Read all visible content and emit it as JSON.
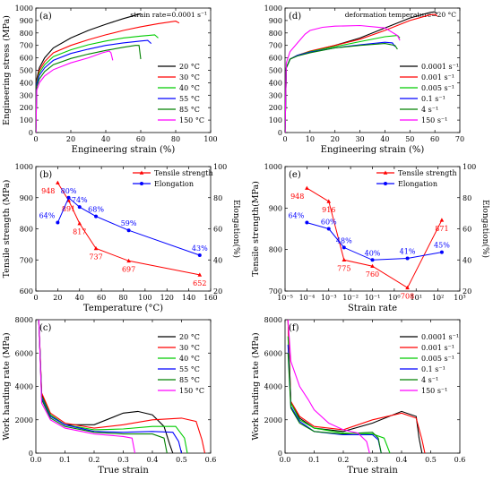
{
  "chart_data": [
    {
      "panel": "(a)",
      "type": "line",
      "annotation": "strain rate=0.0001 s⁻¹",
      "xlabel": "Engineering strain (%)",
      "ylabel": "Engineering stress (MPa)",
      "xlim": [
        0,
        100
      ],
      "ylim": [
        0,
        1000
      ],
      "xticks": [
        "0",
        "20",
        "40",
        "60",
        "80",
        "100"
      ],
      "yticks": [
        "0",
        "100",
        "200",
        "300",
        "400",
        "500",
        "600",
        "700",
        "800",
        "900",
        "1000"
      ],
      "legend_position": "lower-right",
      "series": [
        {
          "name": "20 °C",
          "color": "#000000",
          "x": [
            0,
            0.5,
            2,
            5,
            10,
            20,
            30,
            40,
            50,
            60
          ],
          "y": [
            0,
            430,
            520,
            600,
            680,
            760,
            820,
            870,
            915,
            955
          ]
        },
        {
          "name": "30 °C",
          "color": "#ff0000",
          "x": [
            0,
            0.5,
            2,
            5,
            10,
            20,
            30,
            40,
            50,
            60,
            70,
            80,
            82
          ],
          "y": [
            0,
            410,
            500,
            570,
            640,
            700,
            745,
            785,
            820,
            850,
            875,
            895,
            880
          ]
        },
        {
          "name": "40 °C",
          "color": "#00cc00",
          "x": [
            0,
            0.5,
            2,
            5,
            10,
            20,
            30,
            40,
            50,
            60,
            68,
            70
          ],
          "y": [
            0,
            400,
            480,
            545,
            610,
            665,
            705,
            735,
            760,
            775,
            785,
            760
          ]
        },
        {
          "name": "55 °C",
          "color": "#0000ff",
          "x": [
            0,
            0.5,
            2,
            5,
            10,
            20,
            30,
            40,
            50,
            60,
            64,
            66
          ],
          "y": [
            0,
            390,
            460,
            520,
            580,
            635,
            670,
            700,
            720,
            735,
            740,
            715
          ]
        },
        {
          "name": "85 °C",
          "color": "#008000",
          "x": [
            0,
            0.5,
            2,
            5,
            10,
            20,
            30,
            40,
            50,
            57,
            59,
            60
          ],
          "y": [
            0,
            370,
            430,
            490,
            545,
            595,
            630,
            660,
            685,
            700,
            700,
            590
          ]
        },
        {
          "name": "150 °C",
          "color": "#ff00ff",
          "x": [
            0,
            0.5,
            2,
            5,
            10,
            20,
            30,
            38,
            42,
            43,
            44
          ],
          "y": [
            0,
            340,
            400,
            455,
            505,
            560,
            600,
            640,
            655,
            640,
            580
          ]
        }
      ]
    },
    {
      "panel": "(d)",
      "type": "line",
      "annotation": "deformation temperature=20 °C",
      "xlabel": "Engineering strain (%)",
      "ylabel": "",
      "xlim": [
        0,
        70
      ],
      "ylim": [
        0,
        1000
      ],
      "xticks": [
        "0",
        "10",
        "20",
        "30",
        "40",
        "50",
        "60",
        "70"
      ],
      "yticks": [
        "0",
        "100",
        "200",
        "300",
        "400",
        "500",
        "600",
        "700",
        "800",
        "900",
        "1000"
      ],
      "legend_position": "lower-right",
      "series": [
        {
          "name": "0.0001 s⁻¹",
          "color": "#000000",
          "x": [
            0,
            0.5,
            2,
            5,
            10,
            20,
            30,
            40,
            50,
            58,
            60,
            61
          ],
          "y": [
            0,
            520,
            590,
            620,
            650,
            700,
            760,
            840,
            920,
            965,
            970,
            955
          ]
        },
        {
          "name": "0.001 s⁻¹",
          "color": "#ff0000",
          "x": [
            0,
            0.5,
            2,
            5,
            10,
            20,
            30,
            40,
            50,
            58,
            60,
            61
          ],
          "y": [
            0,
            520,
            590,
            620,
            655,
            700,
            750,
            820,
            900,
            945,
            950,
            935
          ]
        },
        {
          "name": "0.005 s⁻¹",
          "color": "#00cc00",
          "x": [
            0,
            0.5,
            2,
            5,
            10,
            20,
            30,
            40,
            45,
            46
          ],
          "y": [
            0,
            520,
            590,
            620,
            650,
            690,
            730,
            770,
            780,
            760
          ]
        },
        {
          "name": "0.1 s⁻¹",
          "color": "#0000ff",
          "x": [
            0,
            0.5,
            2,
            5,
            10,
            20,
            30,
            40,
            43,
            44
          ],
          "y": [
            0,
            520,
            590,
            620,
            645,
            680,
            705,
            725,
            720,
            690
          ]
        },
        {
          "name": "4 s⁻¹",
          "color": "#008000",
          "x": [
            0,
            0.5,
            2,
            5,
            10,
            20,
            30,
            40,
            44,
            45
          ],
          "y": [
            0,
            520,
            590,
            615,
            640,
            680,
            700,
            715,
            700,
            670
          ]
        },
        {
          "name": "150 s⁻¹",
          "color": "#ff00ff",
          "x": [
            0,
            0.5,
            2,
            5,
            8,
            10,
            15,
            20,
            30,
            40,
            45,
            46
          ],
          "y": [
            0,
            560,
            650,
            720,
            790,
            820,
            845,
            855,
            860,
            840,
            780,
            740
          ]
        }
      ]
    },
    {
      "panel": "(b)",
      "type": "line",
      "xlabel": "Temperature (°C)",
      "ylabel": "Tensile strength (MPa)",
      "y2label": "Elongation(%)",
      "xlim": [
        0,
        160
      ],
      "ylim": [
        600,
        1000
      ],
      "y2lim": [
        20,
        100
      ],
      "xticks": [
        "0",
        "20",
        "40",
        "60",
        "80",
        "100",
        "120",
        "140",
        "160"
      ],
      "yticks": [
        "600",
        "700",
        "800",
        "900",
        "1000"
      ],
      "y2ticks": [
        "20",
        "40",
        "60",
        "80",
        "100"
      ],
      "legend_position": "top-right",
      "series": [
        {
          "name": "Tensile strength",
          "color": "#ff0000",
          "axis": "left",
          "x": [
            20,
            30,
            40,
            55,
            85,
            150
          ],
          "y": [
            948,
            891,
            817,
            737,
            697,
            652
          ],
          "labels": [
            "948",
            "891",
            "817",
            "737",
            "697",
            "652"
          ]
        },
        {
          "name": "Elongation",
          "color": "#0000ff",
          "axis": "right",
          "x": [
            20,
            30,
            40,
            55,
            85,
            150
          ],
          "y": [
            64,
            80,
            74,
            68,
            59,
            43
          ],
          "labels": [
            "64%",
            "80%",
            "74%",
            "68%",
            "59%",
            "43%"
          ]
        }
      ]
    },
    {
      "panel": "(e)",
      "type": "line",
      "xlabel": "Strain rate",
      "ylabel": "Tensile strength(MPa)",
      "y2label": "Elongation(%)",
      "xscale": "log",
      "xlim": [
        1e-05,
        1000
      ],
      "ylim": [
        700,
        1000
      ],
      "y2lim": [
        20,
        100
      ],
      "xticks": [
        "10⁻⁵",
        "10⁻⁴",
        "10⁻³",
        "10⁻²",
        "10⁻¹",
        "10⁰",
        "10¹",
        "10²",
        "10³"
      ],
      "yticks": [
        "700",
        "800",
        "900",
        "1000"
      ],
      "y2ticks": [
        "20",
        "40",
        "60",
        "80",
        "100"
      ],
      "legend_position": "top-right",
      "series": [
        {
          "name": "Tensile strength",
          "color": "#ff0000",
          "axis": "left",
          "x": [
            0.0001,
            0.001,
            0.005,
            0.1,
            4,
            150
          ],
          "y": [
            948,
            916,
            775,
            760,
            708,
            871
          ],
          "labels": [
            "948",
            "916",
            "775",
            "760",
            "708",
            "871"
          ]
        },
        {
          "name": "Elongation",
          "color": "#0000ff",
          "axis": "right",
          "x": [
            0.0001,
            0.001,
            0.005,
            0.1,
            4,
            150
          ],
          "y": [
            64,
            60,
            48,
            40,
            41,
            45
          ],
          "labels": [
            "64%",
            "60%",
            "48%",
            "40%",
            "41%",
            "45%"
          ]
        }
      ]
    },
    {
      "panel": "(c)",
      "type": "line",
      "xlabel": "True strain",
      "ylabel": "Work harding rate (MPa)",
      "xlim": [
        0,
        0.6
      ],
      "ylim": [
        0,
        8000
      ],
      "xticks": [
        "0.0",
        "0.1",
        "0.2",
        "0.3",
        "0.4",
        "0.5",
        "0.6"
      ],
      "yticks": [
        "0",
        "2000",
        "4000",
        "6000",
        "8000"
      ],
      "legend_position": "top-right",
      "series": [
        {
          "name": "20 °C",
          "color": "#000000",
          "x": [
            0.01,
            0.02,
            0.05,
            0.1,
            0.2,
            0.3,
            0.35,
            0.4,
            0.44,
            0.46,
            0.47
          ],
          "y": [
            8000,
            3500,
            2300,
            1700,
            1700,
            2400,
            2500,
            2300,
            1600,
            500,
            0
          ]
        },
        {
          "name": "30 °C",
          "color": "#ff0000",
          "x": [
            0.01,
            0.02,
            0.05,
            0.1,
            0.2,
            0.3,
            0.4,
            0.5,
            0.55,
            0.57,
            0.58
          ],
          "y": [
            8000,
            3600,
            2400,
            1800,
            1500,
            1700,
            2000,
            2100,
            1900,
            800,
            0
          ]
        },
        {
          "name": "40 °C",
          "color": "#00cc00",
          "x": [
            0.01,
            0.02,
            0.05,
            0.1,
            0.2,
            0.3,
            0.4,
            0.48,
            0.51,
            0.52
          ],
          "y": [
            8000,
            3400,
            2300,
            1700,
            1400,
            1450,
            1600,
            1600,
            900,
            0
          ]
        },
        {
          "name": "55 °C",
          "color": "#0000ff",
          "x": [
            0.01,
            0.02,
            0.05,
            0.1,
            0.2,
            0.3,
            0.4,
            0.47,
            0.49,
            0.5
          ],
          "y": [
            8000,
            3300,
            2200,
            1700,
            1300,
            1250,
            1300,
            1250,
            700,
            0
          ]
        },
        {
          "name": "85 °C",
          "color": "#008000",
          "x": [
            0.01,
            0.02,
            0.05,
            0.1,
            0.2,
            0.3,
            0.4,
            0.44,
            0.45
          ],
          "y": [
            8000,
            3200,
            2100,
            1600,
            1250,
            1150,
            1150,
            900,
            0
          ]
        },
        {
          "name": "150 °C",
          "color": "#ff00ff",
          "x": [
            0.01,
            0.02,
            0.05,
            0.1,
            0.2,
            0.3,
            0.33,
            0.34
          ],
          "y": [
            8000,
            3000,
            2000,
            1500,
            1150,
            1000,
            900,
            0
          ]
        }
      ]
    },
    {
      "panel": "(f)",
      "type": "line",
      "xlabel": "True strain",
      "ylabel": "Work harding rate (MPa)",
      "xlim": [
        0,
        0.6
      ],
      "ylim": [
        0,
        8000
      ],
      "xticks": [
        "0.0",
        "0.1",
        "0.2",
        "0.3",
        "0.4",
        "0.5",
        "0.6"
      ],
      "yticks": [
        "0",
        "2000",
        "4000",
        "6000",
        "8000"
      ],
      "legend_position": "top-right",
      "series": [
        {
          "name": "0.0001 s⁻¹",
          "color": "#000000",
          "x": [
            0.01,
            0.02,
            0.05,
            0.1,
            0.2,
            0.3,
            0.4,
            0.45,
            0.46,
            0.47
          ],
          "y": [
            8000,
            3000,
            2100,
            1500,
            1300,
            1800,
            2500,
            2200,
            900,
            0
          ]
        },
        {
          "name": "0.001 s⁻¹",
          "color": "#ff0000",
          "x": [
            0.01,
            0.02,
            0.05,
            0.1,
            0.2,
            0.3,
            0.4,
            0.45,
            0.47,
            0.48
          ],
          "y": [
            8000,
            3100,
            2200,
            1600,
            1400,
            2000,
            2400,
            2100,
            800,
            0
          ]
        },
        {
          "name": "0.005 s⁻¹",
          "color": "#00cc00",
          "x": [
            0.01,
            0.02,
            0.05,
            0.1,
            0.2,
            0.3,
            0.34,
            0.36
          ],
          "y": [
            7000,
            3000,
            2000,
            1500,
            1200,
            1150,
            900,
            0
          ]
        },
        {
          "name": "0.1 s⁻¹",
          "color": "#0000ff",
          "x": [
            0.01,
            0.02,
            0.05,
            0.1,
            0.2,
            0.3,
            0.32,
            0.33
          ],
          "y": [
            6500,
            2800,
            1900,
            1300,
            1100,
            1100,
            800,
            0
          ]
        },
        {
          "name": "4 s⁻¹",
          "color": "#008000",
          "x": [
            0.01,
            0.02,
            0.05,
            0.1,
            0.2,
            0.3,
            0.32,
            0.33
          ],
          "y": [
            6000,
            2700,
            1800,
            1300,
            1150,
            1250,
            900,
            0
          ]
        },
        {
          "name": "150 s⁻¹",
          "color": "#ff00ff",
          "x": [
            0.01,
            0.02,
            0.05,
            0.08,
            0.1,
            0.15,
            0.2,
            0.25,
            0.28,
            0.29
          ],
          "y": [
            8000,
            5500,
            4000,
            3200,
            2600,
            1800,
            1400,
            1200,
            700,
            0
          ]
        }
      ]
    }
  ]
}
